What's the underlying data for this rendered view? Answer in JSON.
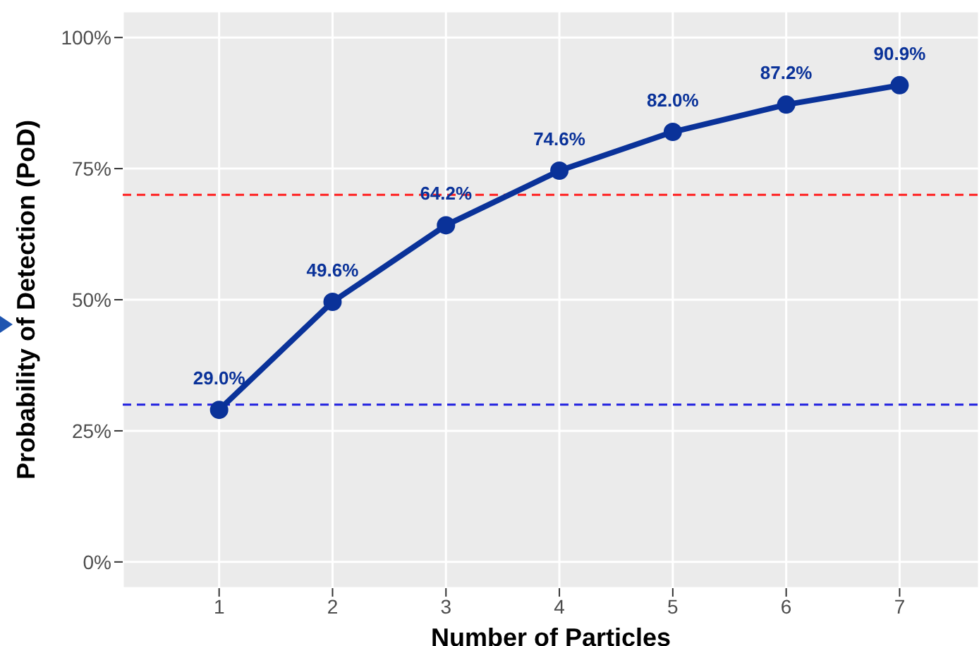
{
  "chart_data": {
    "type": "line",
    "xlabel": "Number of Particles",
    "ylabel": "Probability of Detection (PoD)",
    "x": [
      1,
      2,
      3,
      4,
      5,
      6,
      7
    ],
    "series": [
      {
        "color": "#0a3299",
        "values": [
          29.0,
          49.6,
          64.2,
          74.6,
          82.0,
          87.2,
          90.9
        ],
        "value_labels": [
          "29.0%",
          "49.6%",
          "64.2%",
          "74.6%",
          "82.0%",
          "87.2%",
          "90.9%"
        ]
      }
    ],
    "xlim": [
      0.15,
      7.7
    ],
    "xticks": [
      1,
      2,
      3,
      4,
      5,
      6,
      7
    ],
    "ylim": [
      -5,
      105
    ],
    "yticks": [
      {
        "value": 0,
        "label": "0%"
      },
      {
        "value": 25,
        "label": "25%"
      },
      {
        "value": 50,
        "label": "50%"
      },
      {
        "value": 75,
        "label": "75%"
      },
      {
        "value": 100,
        "label": "100%"
      }
    ],
    "ref_lines": [
      {
        "axis": "y",
        "value": 70,
        "color": "#ff2020",
        "line_style": "dashed"
      },
      {
        "axis": "y",
        "value": 30,
        "color": "#2020e0",
        "line_style": "dashed"
      }
    ],
    "grid": true,
    "marker": "circle",
    "line_style": "solid",
    "legend": false
  }
}
